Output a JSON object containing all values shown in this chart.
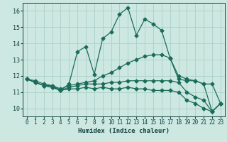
{
  "xlabel": "Humidex (Indice chaleur)",
  "bg_color": "#cce8e0",
  "line_color": "#1a6b5a",
  "grid_color": "#aacfc8",
  "xlim": [
    -0.5,
    23.5
  ],
  "ylim": [
    9.5,
    16.5
  ],
  "xticks": [
    0,
    1,
    2,
    3,
    4,
    5,
    6,
    7,
    8,
    9,
    10,
    11,
    12,
    13,
    14,
    15,
    16,
    17,
    18,
    19,
    20,
    21,
    22,
    23
  ],
  "yticks": [
    10,
    11,
    12,
    13,
    14,
    15,
    16
  ],
  "line1_x": [
    0,
    1,
    2,
    3,
    4,
    5,
    6,
    7,
    8,
    9,
    10,
    11,
    12,
    13,
    14,
    15,
    16,
    17,
    18,
    19,
    20,
    21,
    22,
    23
  ],
  "line1_y": [
    11.8,
    11.7,
    11.5,
    11.4,
    11.1,
    11.5,
    13.5,
    13.8,
    12.1,
    14.3,
    14.7,
    15.8,
    16.2,
    14.5,
    15.5,
    15.2,
    14.8,
    13.1,
    11.8,
    11.7,
    11.7,
    11.5,
    9.8,
    10.3
  ],
  "line2_x": [
    0,
    1,
    2,
    3,
    4,
    5,
    6,
    7,
    8,
    9,
    10,
    11,
    12,
    13,
    14,
    15,
    16,
    17,
    18,
    19,
    20,
    21,
    22,
    23
  ],
  "line2_y": [
    11.8,
    11.6,
    11.4,
    11.4,
    11.2,
    11.4,
    11.5,
    11.6,
    11.7,
    12.0,
    12.2,
    12.5,
    12.8,
    13.0,
    13.2,
    13.3,
    13.3,
    13.1,
    12.0,
    11.8,
    11.7,
    11.5,
    11.5,
    10.3
  ],
  "line3_x": [
    0,
    1,
    2,
    3,
    4,
    5,
    6,
    7,
    8,
    9,
    10,
    11,
    12,
    13,
    14,
    15,
    16,
    17,
    18,
    19,
    20,
    21,
    22,
    23
  ],
  "line3_y": [
    11.8,
    11.6,
    11.4,
    11.3,
    11.1,
    11.3,
    11.4,
    11.5,
    11.5,
    11.5,
    11.6,
    11.6,
    11.7,
    11.7,
    11.7,
    11.7,
    11.7,
    11.7,
    11.6,
    11.0,
    10.7,
    10.5,
    9.8,
    10.3
  ],
  "line4_x": [
    0,
    1,
    2,
    3,
    4,
    5,
    6,
    7,
    8,
    9,
    10,
    11,
    12,
    13,
    14,
    15,
    16,
    17,
    18,
    19,
    20,
    21,
    22,
    23
  ],
  "line4_y": [
    11.8,
    11.6,
    11.4,
    11.3,
    11.1,
    11.2,
    11.2,
    11.3,
    11.2,
    11.3,
    11.2,
    11.2,
    11.3,
    11.2,
    11.2,
    11.1,
    11.1,
    11.1,
    11.0,
    10.5,
    10.3,
    10.0,
    9.8,
    10.3
  ]
}
